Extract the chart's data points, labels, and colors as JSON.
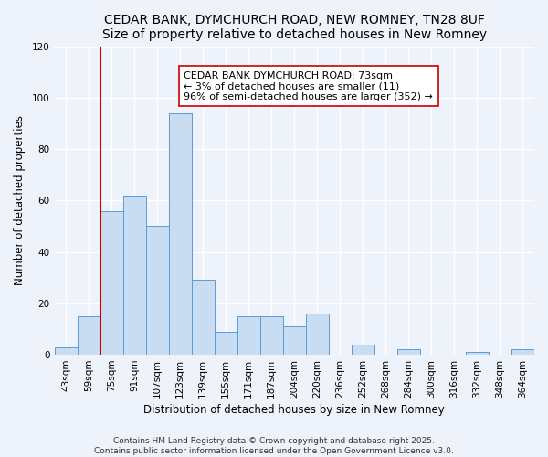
{
  "title": "CEDAR BANK, DYMCHURCH ROAD, NEW ROMNEY, TN28 8UF",
  "subtitle": "Size of property relative to detached houses in New Romney",
  "xlabel": "Distribution of detached houses by size in New Romney",
  "ylabel": "Number of detached properties",
  "categories": [
    "43sqm",
    "59sqm",
    "75sqm",
    "91sqm",
    "107sqm",
    "123sqm",
    "139sqm",
    "155sqm",
    "171sqm",
    "187sqm",
    "204sqm",
    "220sqm",
    "236sqm",
    "252sqm",
    "268sqm",
    "284sqm",
    "300sqm",
    "316sqm",
    "332sqm",
    "348sqm",
    "364sqm"
  ],
  "values": [
    3,
    15,
    56,
    62,
    50,
    94,
    29,
    9,
    15,
    15,
    11,
    16,
    0,
    4,
    0,
    2,
    0,
    0,
    1,
    0,
    2
  ],
  "bar_color": "#c9ddf2",
  "bar_edge_color": "#5b9bd5",
  "vline_index": 2,
  "vline_color": "#cc0000",
  "annotation_title": "CEDAR BANK DYMCHURCH ROAD: 73sqm",
  "annotation_line1": "← 3% of detached houses are smaller (11)",
  "annotation_line2": "96% of semi-detached houses are larger (352) →",
  "annotation_box_color": "#ffffff",
  "annotation_border_color": "#cc0000",
  "ylim": [
    0,
    120
  ],
  "yticks": [
    0,
    20,
    40,
    60,
    80,
    100,
    120
  ],
  "footer1": "Contains HM Land Registry data © Crown copyright and database right 2025.",
  "footer2": "Contains public sector information licensed under the Open Government Licence v3.0.",
  "background_color": "#eef2fa",
  "grid_color": "#ffffff",
  "title_fontsize": 10,
  "label_fontsize": 8.5,
  "tick_fontsize": 7.5,
  "annotation_fontsize": 8,
  "footer_fontsize": 6.5
}
